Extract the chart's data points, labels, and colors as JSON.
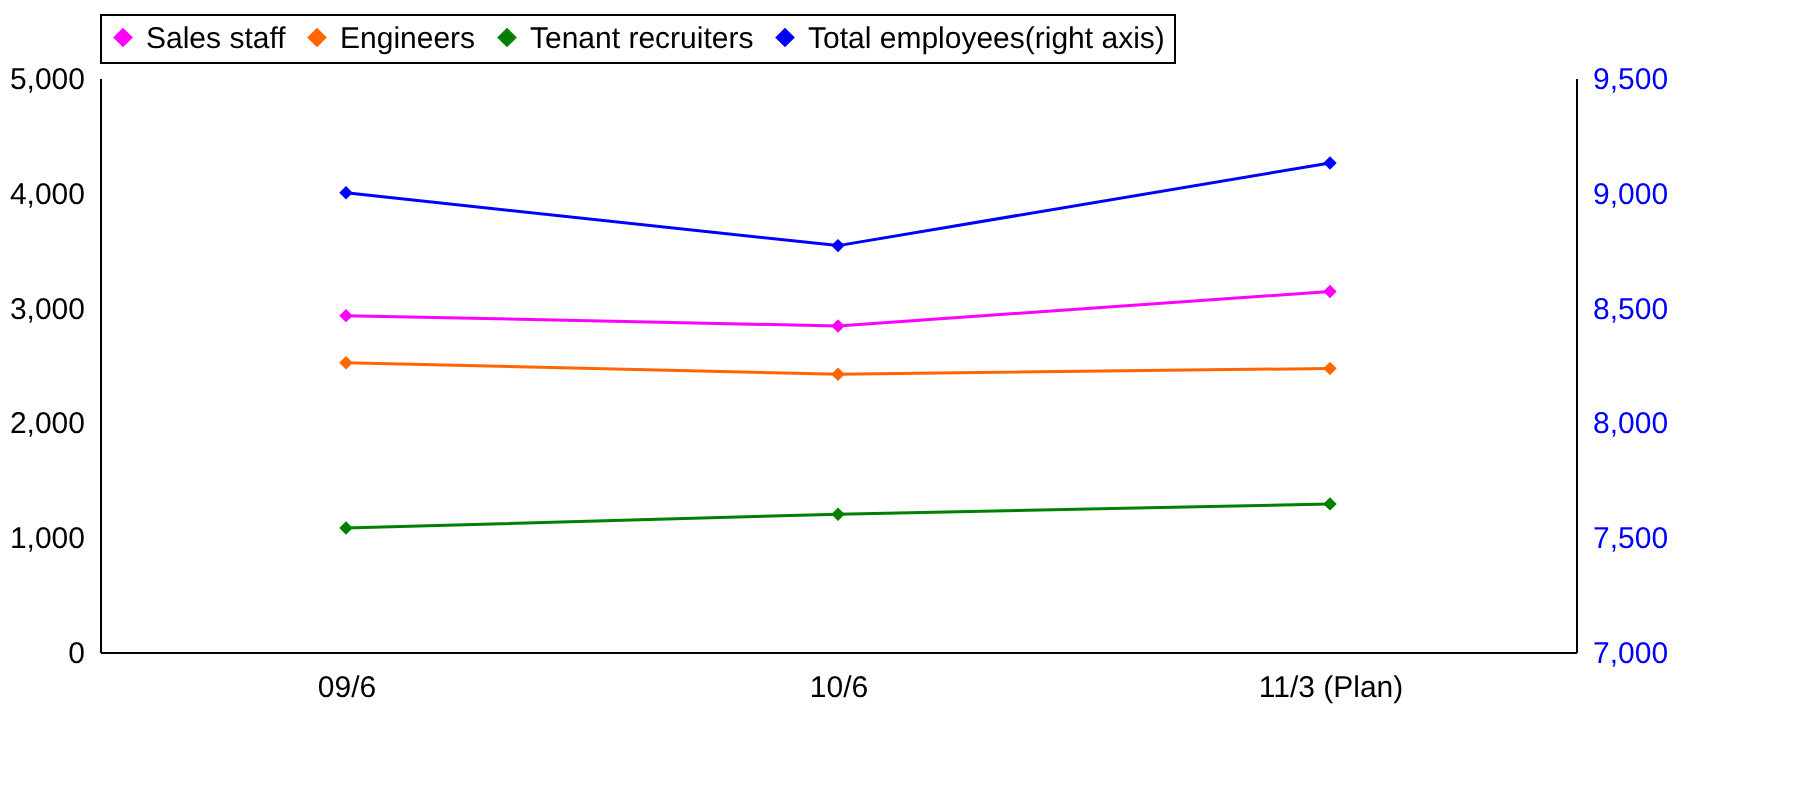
{
  "chart_data": {
    "type": "line",
    "categories": [
      "09/6",
      "10/6",
      "11/3 (Plan)"
    ],
    "series": [
      {
        "name": "Sales staff",
        "color": "#ff00ff",
        "values": [
          2930,
          2840,
          3140
        ]
      },
      {
        "name": "Engineers",
        "color": "#ff6600",
        "values": [
          2520,
          2420,
          2470
        ]
      },
      {
        "name": "Tenant recruiters",
        "color": "#008000",
        "values": [
          1080,
          1200,
          1290
        ]
      },
      {
        "name": "Total employees(right axis)",
        "color": "#0000ff",
        "values": [
          9000,
          8770,
          9130
        ],
        "axis": "y2"
      }
    ],
    "ylim": [
      0,
      5000
    ],
    "yticks": [
      0,
      {
        "value": 1000,
        "label": "1,000"
      },
      {
        "value": 2000,
        "label": "2,000"
      },
      {
        "value": 3000,
        "label": "3,000"
      },
      {
        "value": 4000,
        "label": "4,000"
      },
      {
        "value": 5000,
        "label": "5,000"
      }
    ],
    "y2lim": [
      7000,
      9500
    ],
    "y2ticks": [
      {
        "value": 7000,
        "label": "7,000"
      },
      {
        "value": 7500,
        "label": "7,500"
      },
      {
        "value": 8000,
        "label": "8,000"
      },
      {
        "value": 8500,
        "label": "8,500"
      },
      {
        "value": 9000,
        "label": "9,000"
      },
      {
        "value": 9500,
        "label": "9,500"
      }
    ],
    "grid": false,
    "legend": "top",
    "marker": "diamond",
    "line_style": "solid"
  }
}
